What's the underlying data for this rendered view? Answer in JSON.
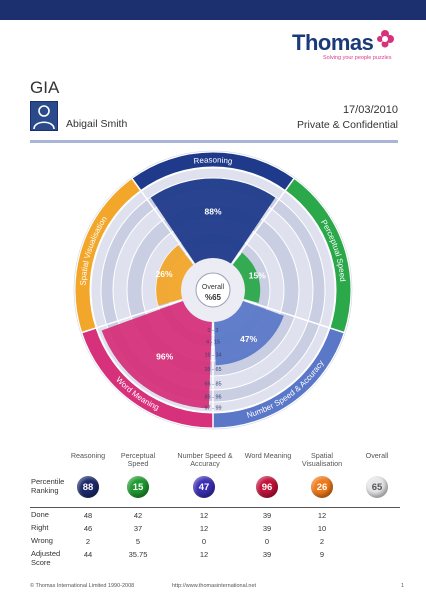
{
  "header": {
    "logo_text": "Thomas",
    "logo_tagline": "Solving your people puzzles",
    "report_title": "GIA",
    "candidate_name": "Abigail Smith",
    "date": "17/03/2010",
    "confidentiality": "Private & Confidential"
  },
  "wheel": {
    "segments": [
      {
        "name": "Reasoning",
        "score": "88%",
        "value": 88,
        "color": "#1f3a8a"
      },
      {
        "name": "Perceptual Speed",
        "score": "15%",
        "value": 15,
        "color": "#2aa84a"
      },
      {
        "name": "Number Speed & Accuracy",
        "score": "47%",
        "value": 47,
        "color": "#5b78c8"
      },
      {
        "name": "Word Meaning",
        "score": "96%",
        "value": 96,
        "color": "#d6317a"
      },
      {
        "name": "Spatial Visualisation",
        "score": "26%",
        "value": 26,
        "color": "#f2a72a"
      }
    ],
    "center_title": "Overall",
    "center_value": "%65",
    "band_labels": [
      "0 - 3",
      "4 - 15",
      "16 - 34",
      "35 - 65",
      "66 - 85",
      "86 - 96",
      "97 - 99"
    ]
  },
  "table": {
    "columns": [
      "Reasoning",
      "Perceptual Speed",
      "Number Speed & Accuracy",
      "Word Meaning",
      "Spatial Visualisation",
      "Overall"
    ],
    "percentile_label": "Percentile Ranking",
    "percentiles": [
      "88",
      "15",
      "47",
      "96",
      "26",
      "65"
    ],
    "rows": [
      {
        "label": "Done",
        "values": [
          "48",
          "42",
          "12",
          "39",
          "12"
        ]
      },
      {
        "label": "Right",
        "values": [
          "46",
          "37",
          "12",
          "39",
          "10"
        ]
      },
      {
        "label": "Wrong",
        "values": [
          "2",
          "5",
          "0",
          "0",
          "2"
        ]
      },
      {
        "label": "Adjusted Score",
        "values": [
          "44",
          "35.75",
          "12",
          "39",
          "9"
        ]
      }
    ],
    "circle_colors": [
      "#1d2a6b",
      "#1f9a2f",
      "#3b2fb3",
      "#c2123a",
      "#f07a1a",
      "#e6e6ea"
    ]
  },
  "footer": {
    "copyright": "© Thomas International Limited 1990-2008",
    "url": "http://www.thomasinternational.net",
    "page": "1"
  }
}
